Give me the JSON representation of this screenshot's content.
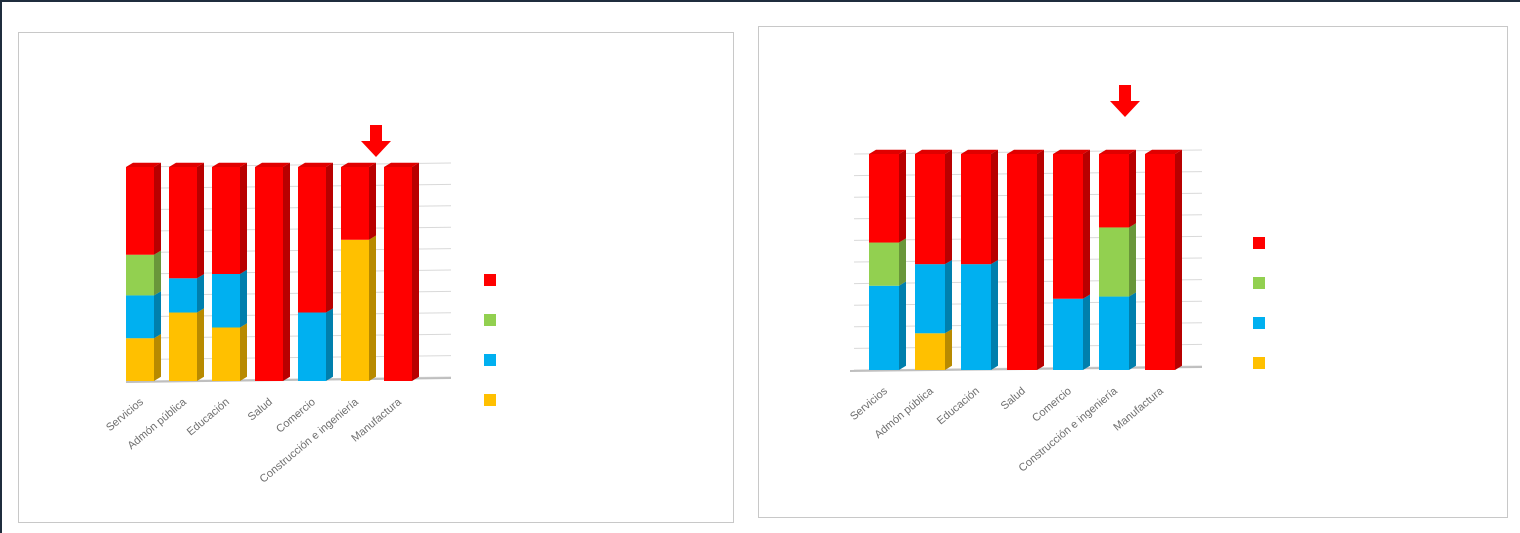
{
  "chart_data": [
    {
      "type": "bar",
      "stacked": true,
      "style": "3d",
      "categories": [
        "Servicios",
        "Admón pública",
        "Educación",
        "Salud",
        "Comercio",
        "Construcción e ingeniería",
        "Manufactura"
      ],
      "series": [
        {
          "color": "#ffc000",
          "values": [
            20,
            32,
            25,
            0,
            0,
            66,
            0
          ]
        },
        {
          "color": "#00b0f0",
          "values": [
            20,
            16,
            25,
            0,
            32,
            0,
            0
          ]
        },
        {
          "color": "#92d050",
          "values": [
            19,
            0,
            0,
            0,
            0,
            0,
            0
          ]
        },
        {
          "color": "#ff0000",
          "values": [
            41,
            52,
            50,
            100,
            68,
            34,
            100
          ]
        }
      ],
      "ylim": [
        0,
        100
      ],
      "grid": true,
      "legend": "right",
      "highlight": {
        "category": "Construcción e ingeniería",
        "marker": "down-arrow",
        "color": "#ff0000"
      }
    },
    {
      "type": "bar",
      "stacked": true,
      "style": "3d",
      "categories": [
        "Servicios",
        "Admón pública",
        "Educación",
        "Salud",
        "Comercio",
        "Construcción e ingeniería",
        "Manufactura"
      ],
      "series": [
        {
          "color": "#ffc000",
          "values": [
            0,
            17,
            0,
            0,
            0,
            0,
            0
          ]
        },
        {
          "color": "#00b0f0",
          "values": [
            39,
            32,
            49,
            0,
            33,
            34,
            0
          ]
        },
        {
          "color": "#92d050",
          "values": [
            20,
            0,
            0,
            0,
            0,
            32,
            0
          ]
        },
        {
          "color": "#ff0000",
          "values": [
            41,
            51,
            51,
            100,
            67,
            34,
            100
          ]
        }
      ],
      "ylim": [
        0,
        100
      ],
      "grid": true,
      "legend": "right",
      "highlight": {
        "category": "Construcción e ingeniería",
        "marker": "down-arrow",
        "color": "#ff0000"
      }
    }
  ]
}
